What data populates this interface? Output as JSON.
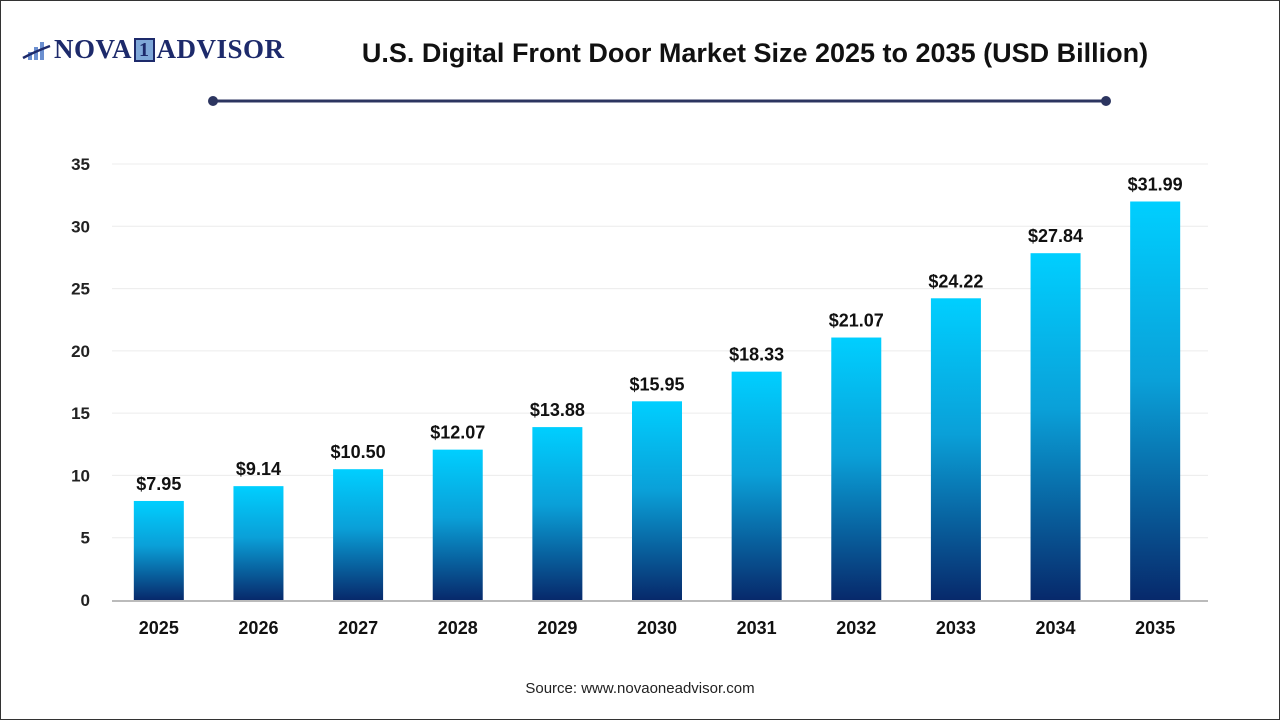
{
  "logo": {
    "text_left": "NOVA",
    "text_mid": "1",
    "text_right": "ADVISOR"
  },
  "colors": {
    "bar_top": "#00cfff",
    "bar_bottom": "#07296b",
    "title_rule": "#2c3560",
    "logo": "#1d2a6b"
  },
  "source": "Source: www.novaoneadvisor.com",
  "chart_data": {
    "type": "bar",
    "title": "U.S. Digital Front Door Market Size 2025 to 2035 (USD Billion)",
    "categories": [
      "2025",
      "2026",
      "2027",
      "2028",
      "2029",
      "2030",
      "2031",
      "2032",
      "2033",
      "2034",
      "2035"
    ],
    "values": [
      7.95,
      9.14,
      10.5,
      12.07,
      13.88,
      15.95,
      18.33,
      21.07,
      24.22,
      27.84,
      31.99
    ],
    "data_labels": [
      "$7.95",
      "$9.14",
      "$10.50",
      "$12.07",
      "$13.88",
      "$15.95",
      "$18.33",
      "$21.07",
      "$24.22",
      "$27.84",
      "$31.99"
    ],
    "ylim": [
      0,
      35
    ],
    "yticks": [
      0,
      5,
      10,
      15,
      20,
      25,
      30,
      35
    ],
    "grid": true,
    "xlabel": "",
    "ylabel": ""
  }
}
